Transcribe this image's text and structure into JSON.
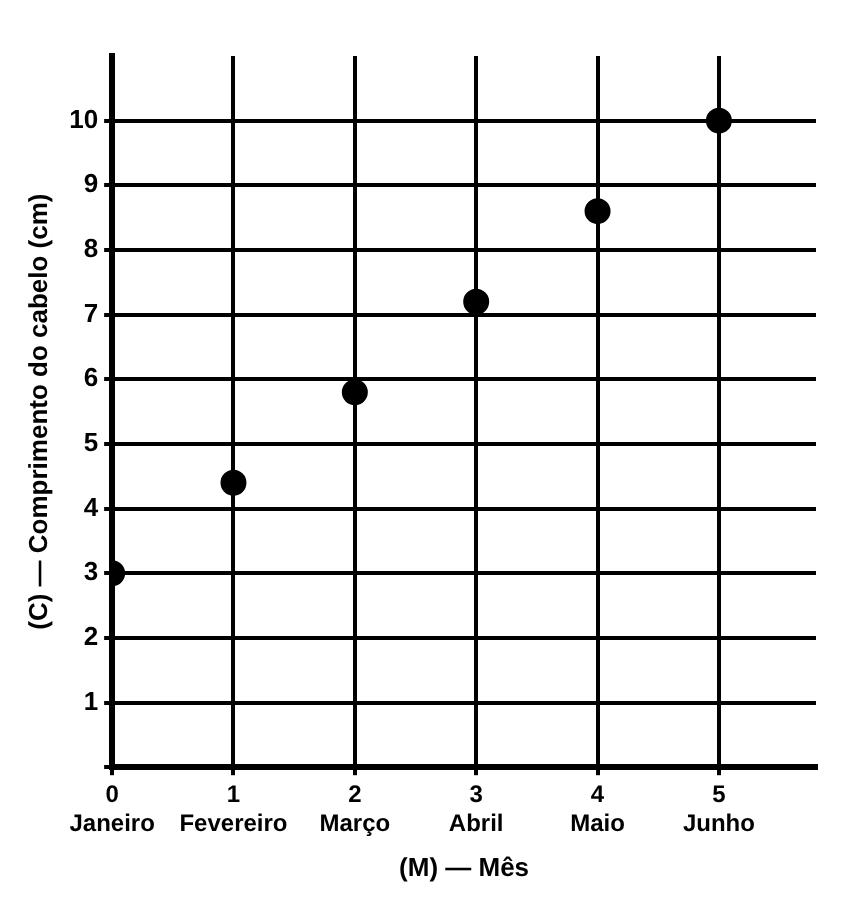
{
  "chart_data": {
    "type": "scatter",
    "xlabel": "(M) — Mês",
    "ylabel": "(C) — Comprimento do cabelo (cm)",
    "x": [
      0,
      1,
      2,
      3,
      4,
      5
    ],
    "values": [
      3,
      4.4,
      5.8,
      7.2,
      8.6,
      10
    ],
    "color": "#000000",
    "xlim": [
      0,
      5.8
    ],
    "ylim": [
      0,
      11
    ],
    "xticks": [
      {
        "value": 0,
        "label": "0\nJaneiro"
      },
      {
        "value": 1,
        "label": "1\nFevereiro"
      },
      {
        "value": 2,
        "label": "2\nMarço"
      },
      {
        "value": 3,
        "label": "3\nAbril"
      },
      {
        "value": 4,
        "label": "4\nMaio"
      },
      {
        "value": 5,
        "label": "5\nJunho"
      }
    ],
    "yticks": [
      {
        "value": 0,
        "label": null
      },
      1,
      2,
      3,
      4,
      5,
      6,
      7,
      8,
      9,
      10
    ],
    "grid": true,
    "marker": "circle",
    "legend": false
  }
}
